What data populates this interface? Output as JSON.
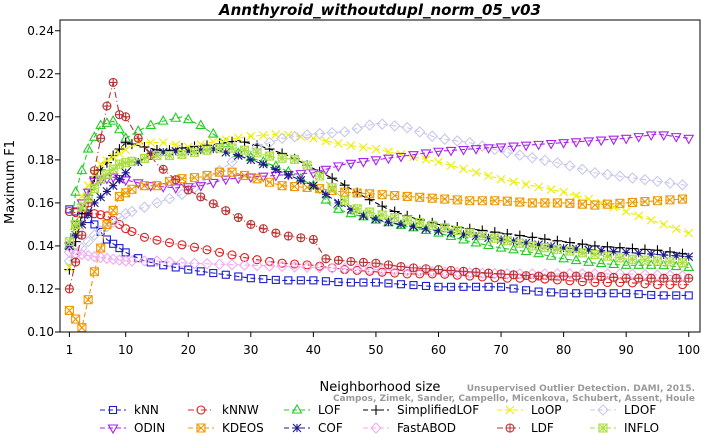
{
  "chart_data": {
    "type": "line",
    "title": "Annthyroid_withoutdupl_norm_05_v03",
    "xlabel": "Neighborhood size",
    "ylabel": "Maximum F1",
    "xlim": [
      1,
      100
    ],
    "ylim": [
      0.1,
      0.245
    ],
    "xticks": [
      "1",
      "10",
      "20",
      "30",
      "40",
      "50",
      "60",
      "70",
      "80",
      "90",
      "100"
    ],
    "yticks": [
      "0.10",
      "0.12",
      "0.14",
      "0.16",
      "0.18",
      "0.20",
      "0.22",
      "0.24"
    ],
    "grid": false,
    "legend_position": "bottom",
    "citation": "Campos, Zimek, Sander, Campello, Micenkova, Schubert, Assent, Houle",
    "citation_line1": "Unsupervised Outlier Detection. DAMI, 2015.",
    "series": [
      {
        "name": "kNN",
        "color": "#1e1ed2",
        "marker": "square",
        "dash": "dash",
        "points": [
          [
            1,
            0.157
          ],
          [
            3,
            0.155
          ],
          [
            5,
            0.15
          ],
          [
            7,
            0.143
          ],
          [
            10,
            0.137
          ],
          [
            13,
            0.133
          ],
          [
            16,
            0.131
          ],
          [
            20,
            0.129
          ],
          [
            25,
            0.127
          ],
          [
            30,
            0.125
          ],
          [
            35,
            0.124
          ],
          [
            40,
            0.124
          ],
          [
            45,
            0.123
          ],
          [
            50,
            0.123
          ],
          [
            55,
            0.122
          ],
          [
            60,
            0.121
          ],
          [
            65,
            0.121
          ],
          [
            70,
            0.121
          ],
          [
            75,
            0.119
          ],
          [
            80,
            0.118
          ],
          [
            85,
            0.118
          ],
          [
            90,
            0.118
          ],
          [
            95,
            0.117
          ],
          [
            100,
            0.117
          ]
        ]
      },
      {
        "name": "kNNW",
        "color": "#e02020",
        "marker": "circle",
        "dash": "dashdot",
        "points": [
          [
            1,
            0.156
          ],
          [
            3,
            0.155
          ],
          [
            5,
            0.155
          ],
          [
            7,
            0.154
          ],
          [
            10,
            0.148
          ],
          [
            13,
            0.144
          ],
          [
            16,
            0.142
          ],
          [
            20,
            0.14
          ],
          [
            25,
            0.137
          ],
          [
            30,
            0.134
          ],
          [
            35,
            0.132
          ],
          [
            40,
            0.131
          ],
          [
            45,
            0.129
          ],
          [
            50,
            0.128
          ],
          [
            55,
            0.127
          ],
          [
            60,
            0.127
          ],
          [
            65,
            0.126
          ],
          [
            70,
            0.125
          ],
          [
            75,
            0.125
          ],
          [
            80,
            0.124
          ],
          [
            85,
            0.123
          ],
          [
            90,
            0.123
          ],
          [
            95,
            0.122
          ],
          [
            100,
            0.122
          ]
        ]
      },
      {
        "name": "LOF",
        "color": "#22cc22",
        "marker": "triangle-up",
        "dash": "dash",
        "points": [
          [
            1,
            0.14
          ],
          [
            2,
            0.165
          ],
          [
            4,
            0.185
          ],
          [
            6,
            0.196
          ],
          [
            8,
            0.198
          ],
          [
            10,
            0.19
          ],
          [
            13,
            0.195
          ],
          [
            16,
            0.198
          ],
          [
            19,
            0.2
          ],
          [
            22,
            0.196
          ],
          [
            25,
            0.19
          ],
          [
            28,
            0.183
          ],
          [
            31,
            0.18
          ],
          [
            35,
            0.176
          ],
          [
            40,
            0.168
          ],
          [
            43,
            0.158
          ],
          [
            46,
            0.155
          ],
          [
            50,
            0.152
          ],
          [
            55,
            0.149
          ],
          [
            60,
            0.146
          ],
          [
            65,
            0.142
          ],
          [
            70,
            0.139
          ],
          [
            75,
            0.137
          ],
          [
            80,
            0.134
          ],
          [
            85,
            0.132
          ],
          [
            90,
            0.131
          ],
          [
            95,
            0.131
          ],
          [
            100,
            0.13
          ]
        ]
      },
      {
        "name": "SimplifiedLOF",
        "color": "#000000",
        "marker": "plus",
        "dash": "dash",
        "points": [
          [
            1,
            0.129
          ],
          [
            3,
            0.155
          ],
          [
            5,
            0.172
          ],
          [
            8,
            0.182
          ],
          [
            10,
            0.188
          ],
          [
            13,
            0.186
          ],
          [
            16,
            0.184
          ],
          [
            20,
            0.186
          ],
          [
            24,
            0.187
          ],
          [
            28,
            0.189
          ],
          [
            32,
            0.186
          ],
          [
            36,
            0.182
          ],
          [
            40,
            0.176
          ],
          [
            44,
            0.17
          ],
          [
            48,
            0.163
          ],
          [
            52,
            0.157
          ],
          [
            56,
            0.153
          ],
          [
            60,
            0.15
          ],
          [
            65,
            0.148
          ],
          [
            70,
            0.146
          ],
          [
            75,
            0.144
          ],
          [
            80,
            0.142
          ],
          [
            85,
            0.14
          ],
          [
            90,
            0.139
          ],
          [
            95,
            0.138
          ],
          [
            100,
            0.136
          ]
        ]
      },
      {
        "name": "LoOP",
        "color": "#eeee00",
        "marker": "x",
        "dash": "dash",
        "points": [
          [
            1,
            0.13
          ],
          [
            3,
            0.163
          ],
          [
            6,
            0.178
          ],
          [
            9,
            0.183
          ],
          [
            12,
            0.188
          ],
          [
            16,
            0.188
          ],
          [
            20,
            0.186
          ],
          [
            25,
            0.189
          ],
          [
            30,
            0.191
          ],
          [
            35,
            0.192
          ],
          [
            40,
            0.19
          ],
          [
            45,
            0.187
          ],
          [
            50,
            0.185
          ],
          [
            55,
            0.182
          ],
          [
            60,
            0.179
          ],
          [
            65,
            0.175
          ],
          [
            70,
            0.171
          ],
          [
            75,
            0.168
          ],
          [
            80,
            0.165
          ],
          [
            85,
            0.161
          ],
          [
            90,
            0.156
          ],
          [
            95,
            0.151
          ],
          [
            100,
            0.146
          ]
        ]
      },
      {
        "name": "LDOF",
        "color": "#c8c8ee",
        "marker": "diamond",
        "dash": "dash",
        "points": [
          [
            1,
            0.133
          ],
          [
            5,
            0.145
          ],
          [
            10,
            0.155
          ],
          [
            15,
            0.16
          ],
          [
            20,
            0.165
          ],
          [
            25,
            0.175
          ],
          [
            30,
            0.185
          ],
          [
            35,
            0.19
          ],
          [
            40,
            0.192
          ],
          [
            45,
            0.193
          ],
          [
            50,
            0.197
          ],
          [
            55,
            0.195
          ],
          [
            60,
            0.19
          ],
          [
            65,
            0.188
          ],
          [
            70,
            0.184
          ],
          [
            75,
            0.181
          ],
          [
            80,
            0.178
          ],
          [
            85,
            0.174
          ],
          [
            90,
            0.172
          ],
          [
            95,
            0.17
          ],
          [
            100,
            0.168
          ]
        ]
      },
      {
        "name": "ODIN",
        "color": "#aa22ee",
        "marker": "triangle-down",
        "dash": "dash",
        "points": [
          [
            1,
            0.14
          ],
          [
            3,
            0.16
          ],
          [
            5,
            0.17
          ],
          [
            8,
            0.172
          ],
          [
            11,
            0.17
          ],
          [
            14,
            0.168
          ],
          [
            18,
            0.167
          ],
          [
            22,
            0.168
          ],
          [
            26,
            0.171
          ],
          [
            30,
            0.172
          ],
          [
            35,
            0.173
          ],
          [
            40,
            0.174
          ],
          [
            45,
            0.178
          ],
          [
            50,
            0.18
          ],
          [
            55,
            0.182
          ],
          [
            60,
            0.184
          ],
          [
            65,
            0.185
          ],
          [
            70,
            0.186
          ],
          [
            75,
            0.187
          ],
          [
            80,
            0.188
          ],
          [
            85,
            0.189
          ],
          [
            90,
            0.19
          ],
          [
            95,
            0.192
          ],
          [
            100,
            0.19
          ]
        ]
      },
      {
        "name": "KDEOS",
        "color": "#ee9900",
        "marker": "square-x",
        "dash": "dash",
        "points": [
          [
            1,
            0.11
          ],
          [
            3,
            0.102
          ],
          [
            5,
            0.128
          ],
          [
            7,
            0.15
          ],
          [
            9,
            0.163
          ],
          [
            12,
            0.168
          ],
          [
            15,
            0.168
          ],
          [
            18,
            0.171
          ],
          [
            22,
            0.172
          ],
          [
            26,
            0.175
          ],
          [
            30,
            0.172
          ],
          [
            35,
            0.168
          ],
          [
            40,
            0.167
          ],
          [
            45,
            0.165
          ],
          [
            50,
            0.164
          ],
          [
            55,
            0.163
          ],
          [
            60,
            0.162
          ],
          [
            65,
            0.161
          ],
          [
            70,
            0.161
          ],
          [
            75,
            0.16
          ],
          [
            80,
            0.16
          ],
          [
            85,
            0.159
          ],
          [
            90,
            0.16
          ],
          [
            95,
            0.161
          ],
          [
            100,
            0.162
          ]
        ]
      },
      {
        "name": "COF",
        "color": "#1a1a88",
        "marker": "star",
        "dash": "dash",
        "points": [
          [
            1,
            0.14
          ],
          [
            3,
            0.15
          ],
          [
            5,
            0.16
          ],
          [
            8,
            0.168
          ],
          [
            11,
            0.177
          ],
          [
            14,
            0.183
          ],
          [
            17,
            0.184
          ],
          [
            20,
            0.184
          ],
          [
            24,
            0.185
          ],
          [
            28,
            0.182
          ],
          [
            32,
            0.178
          ],
          [
            36,
            0.173
          ],
          [
            40,
            0.168
          ],
          [
            44,
            0.16
          ],
          [
            48,
            0.154
          ],
          [
            52,
            0.151
          ],
          [
            56,
            0.149
          ],
          [
            60,
            0.147
          ],
          [
            65,
            0.145
          ],
          [
            70,
            0.143
          ],
          [
            75,
            0.141
          ],
          [
            80,
            0.139
          ],
          [
            85,
            0.138
          ],
          [
            90,
            0.137
          ],
          [
            95,
            0.136
          ],
          [
            100,
            0.135
          ]
        ]
      },
      {
        "name": "FastABOD",
        "color": "#f4aaf4",
        "marker": "diamond",
        "dash": "dash",
        "points": [
          [
            1,
            0.137
          ],
          [
            5,
            0.135
          ],
          [
            10,
            0.133
          ],
          [
            15,
            0.133
          ],
          [
            20,
            0.132
          ],
          [
            30,
            0.131
          ],
          [
            40,
            0.13
          ],
          [
            50,
            0.129
          ],
          [
            60,
            0.128
          ],
          [
            70,
            0.127
          ],
          [
            80,
            0.127
          ],
          [
            90,
            0.127
          ],
          [
            100,
            0.126
          ]
        ]
      },
      {
        "name": "LDF",
        "color": "#bb3333",
        "marker": "circle-plus",
        "dash": "dashdot",
        "points": [
          [
            1,
            0.12
          ],
          [
            3,
            0.145
          ],
          [
            5,
            0.175
          ],
          [
            7,
            0.205
          ],
          [
            8,
            0.216
          ],
          [
            9,
            0.201
          ],
          [
            10,
            0.2
          ],
          [
            12,
            0.19
          ],
          [
            15,
            0.178
          ],
          [
            20,
            0.166
          ],
          [
            25,
            0.158
          ],
          [
            30,
            0.15
          ],
          [
            35,
            0.145
          ],
          [
            40,
            0.143
          ],
          [
            42,
            0.134
          ],
          [
            45,
            0.133
          ],
          [
            50,
            0.132
          ],
          [
            55,
            0.13
          ],
          [
            60,
            0.129
          ],
          [
            65,
            0.128
          ],
          [
            70,
            0.127
          ],
          [
            75,
            0.126
          ],
          [
            80,
            0.126
          ],
          [
            85,
            0.126
          ],
          [
            90,
            0.125
          ],
          [
            95,
            0.125
          ],
          [
            100,
            0.125
          ]
        ]
      },
      {
        "name": "INFLO",
        "color": "#aade44",
        "marker": "square-star",
        "dash": "dash",
        "points": [
          [
            1,
            0.142
          ],
          [
            3,
            0.158
          ],
          [
            6,
            0.171
          ],
          [
            9,
            0.178
          ],
          [
            12,
            0.18
          ],
          [
            15,
            0.182
          ],
          [
            18,
            0.182
          ],
          [
            22,
            0.184
          ],
          [
            26,
            0.186
          ],
          [
            30,
            0.184
          ],
          [
            34,
            0.181
          ],
          [
            38,
            0.18
          ],
          [
            42,
            0.17
          ],
          [
            46,
            0.158
          ],
          [
            50,
            0.155
          ],
          [
            55,
            0.152
          ],
          [
            60,
            0.149
          ],
          [
            65,
            0.146
          ],
          [
            70,
            0.143
          ],
          [
            75,
            0.14
          ],
          [
            80,
            0.138
          ],
          [
            85,
            0.136
          ],
          [
            90,
            0.134
          ],
          [
            95,
            0.133
          ],
          [
            100,
            0.132
          ]
        ]
      }
    ]
  }
}
